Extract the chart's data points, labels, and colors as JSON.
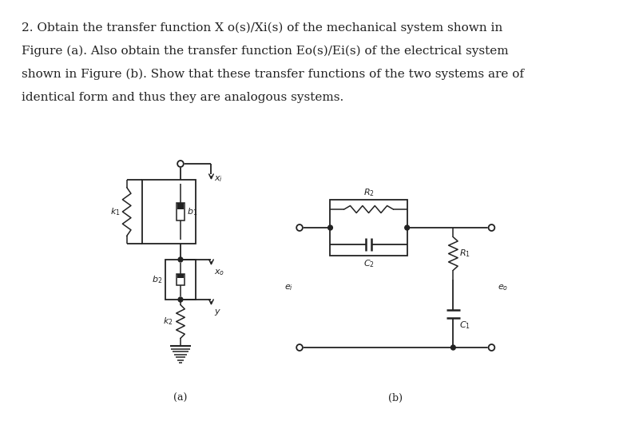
{
  "bg_color": "#ffffff",
  "text_color": "#222222",
  "line_color": "#222222",
  "title_lines": [
    "2. Obtain the transfer function X o(s)/Xi(s) of the mechanical system shown in",
    "Figure (a). Also obtain the transfer function Eo(s)/Ei(s) of the electrical system",
    "shown in Figure (b). Show that these transfer functions of the two systems are of",
    "identical form and thus they are analogous systems."
  ],
  "label_a": "(a)",
  "label_b": "(b)"
}
